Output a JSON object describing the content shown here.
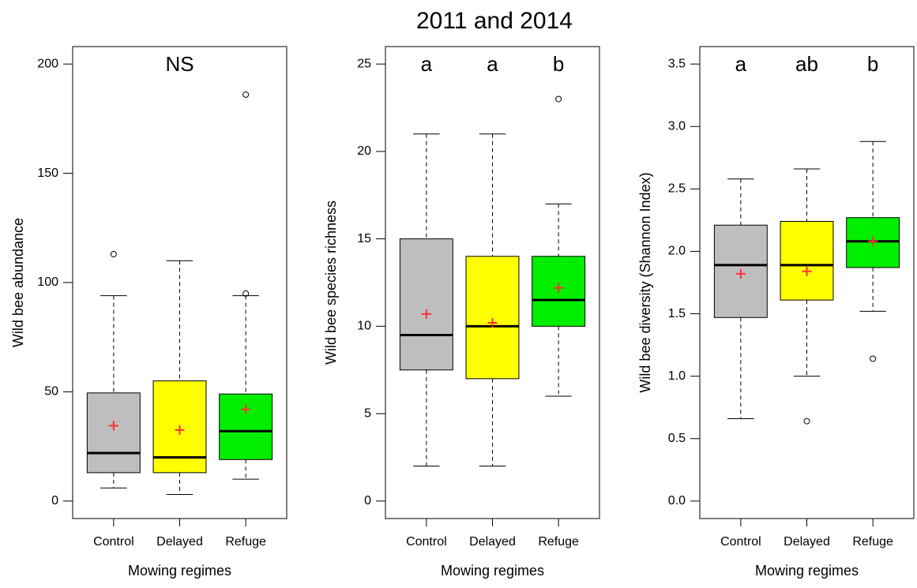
{
  "title": "2011 and 2014",
  "chart_data": [
    {
      "type": "box",
      "ylabel": "Wild bee abundance",
      "xlabel": "Mowing regimes",
      "annotation": "NS",
      "categories": [
        "Control",
        "Delayed",
        "Refuge"
      ],
      "colors": [
        "#bebebe",
        "#ffff00",
        "#00ee00"
      ],
      "mean_color": "#ff3030",
      "low": [
        6,
        3,
        10
      ],
      "q1": [
        13,
        13,
        19
      ],
      "median": [
        22,
        20,
        32
      ],
      "q3": [
        49.5,
        55,
        49
      ],
      "high": [
        94,
        110,
        94
      ],
      "mean": [
        34.5,
        32.5,
        42
      ],
      "outliers": [
        [
          113
        ],
        [],
        [
          95,
          186
        ]
      ],
      "ylim": [
        -8,
        208
      ],
      "yticks": [
        0,
        50,
        100,
        150,
        200
      ]
    },
    {
      "type": "box",
      "ylabel": "Wild bee species richness",
      "xlabel": "Mowing regimes",
      "group_letters": [
        "a",
        "a",
        "b"
      ],
      "categories": [
        "Control",
        "Delayed",
        "Refuge"
      ],
      "colors": [
        "#bebebe",
        "#ffff00",
        "#00ee00"
      ],
      "mean_color": "#ff3030",
      "low": [
        2,
        2,
        6
      ],
      "q1": [
        7.5,
        7,
        10
      ],
      "median": [
        9.5,
        10,
        11.5
      ],
      "q3": [
        15,
        14,
        14
      ],
      "high": [
        21,
        21,
        17
      ],
      "mean": [
        10.7,
        10.2,
        12.2
      ],
      "outliers": [
        [],
        [],
        [
          23
        ]
      ],
      "ylim": [
        -1,
        26
      ],
      "yticks": [
        0,
        5,
        10,
        15,
        20,
        25
      ]
    },
    {
      "type": "box",
      "ylabel": "Wild bee diversity (Shannon Index)",
      "xlabel": "Mowing regimes",
      "group_letters": [
        "a",
        "ab",
        "b"
      ],
      "categories": [
        "Control",
        "Delayed",
        "Refuge"
      ],
      "colors": [
        "#bebebe",
        "#ffff00",
        "#00ee00"
      ],
      "mean_color": "#ff3030",
      "low": [
        0.66,
        1.0,
        1.52
      ],
      "q1": [
        1.47,
        1.61,
        1.87
      ],
      "median": [
        1.89,
        1.89,
        2.08
      ],
      "q3": [
        2.21,
        2.24,
        2.27
      ],
      "high": [
        2.58,
        2.66,
        2.88
      ],
      "mean": [
        1.82,
        1.84,
        2.08
      ],
      "outliers": [
        [],
        [
          0.64
        ],
        [
          1.14
        ]
      ],
      "ylim": [
        -0.14,
        3.64
      ],
      "yticks": [
        {
          "value": 0,
          "label": "0.0"
        },
        0.5,
        {
          "value": 1,
          "label": "1.0"
        },
        1.5,
        {
          "value": 2,
          "label": "2.0"
        },
        2.5,
        {
          "value": 3,
          "label": "3.0"
        },
        3.5
      ]
    }
  ]
}
